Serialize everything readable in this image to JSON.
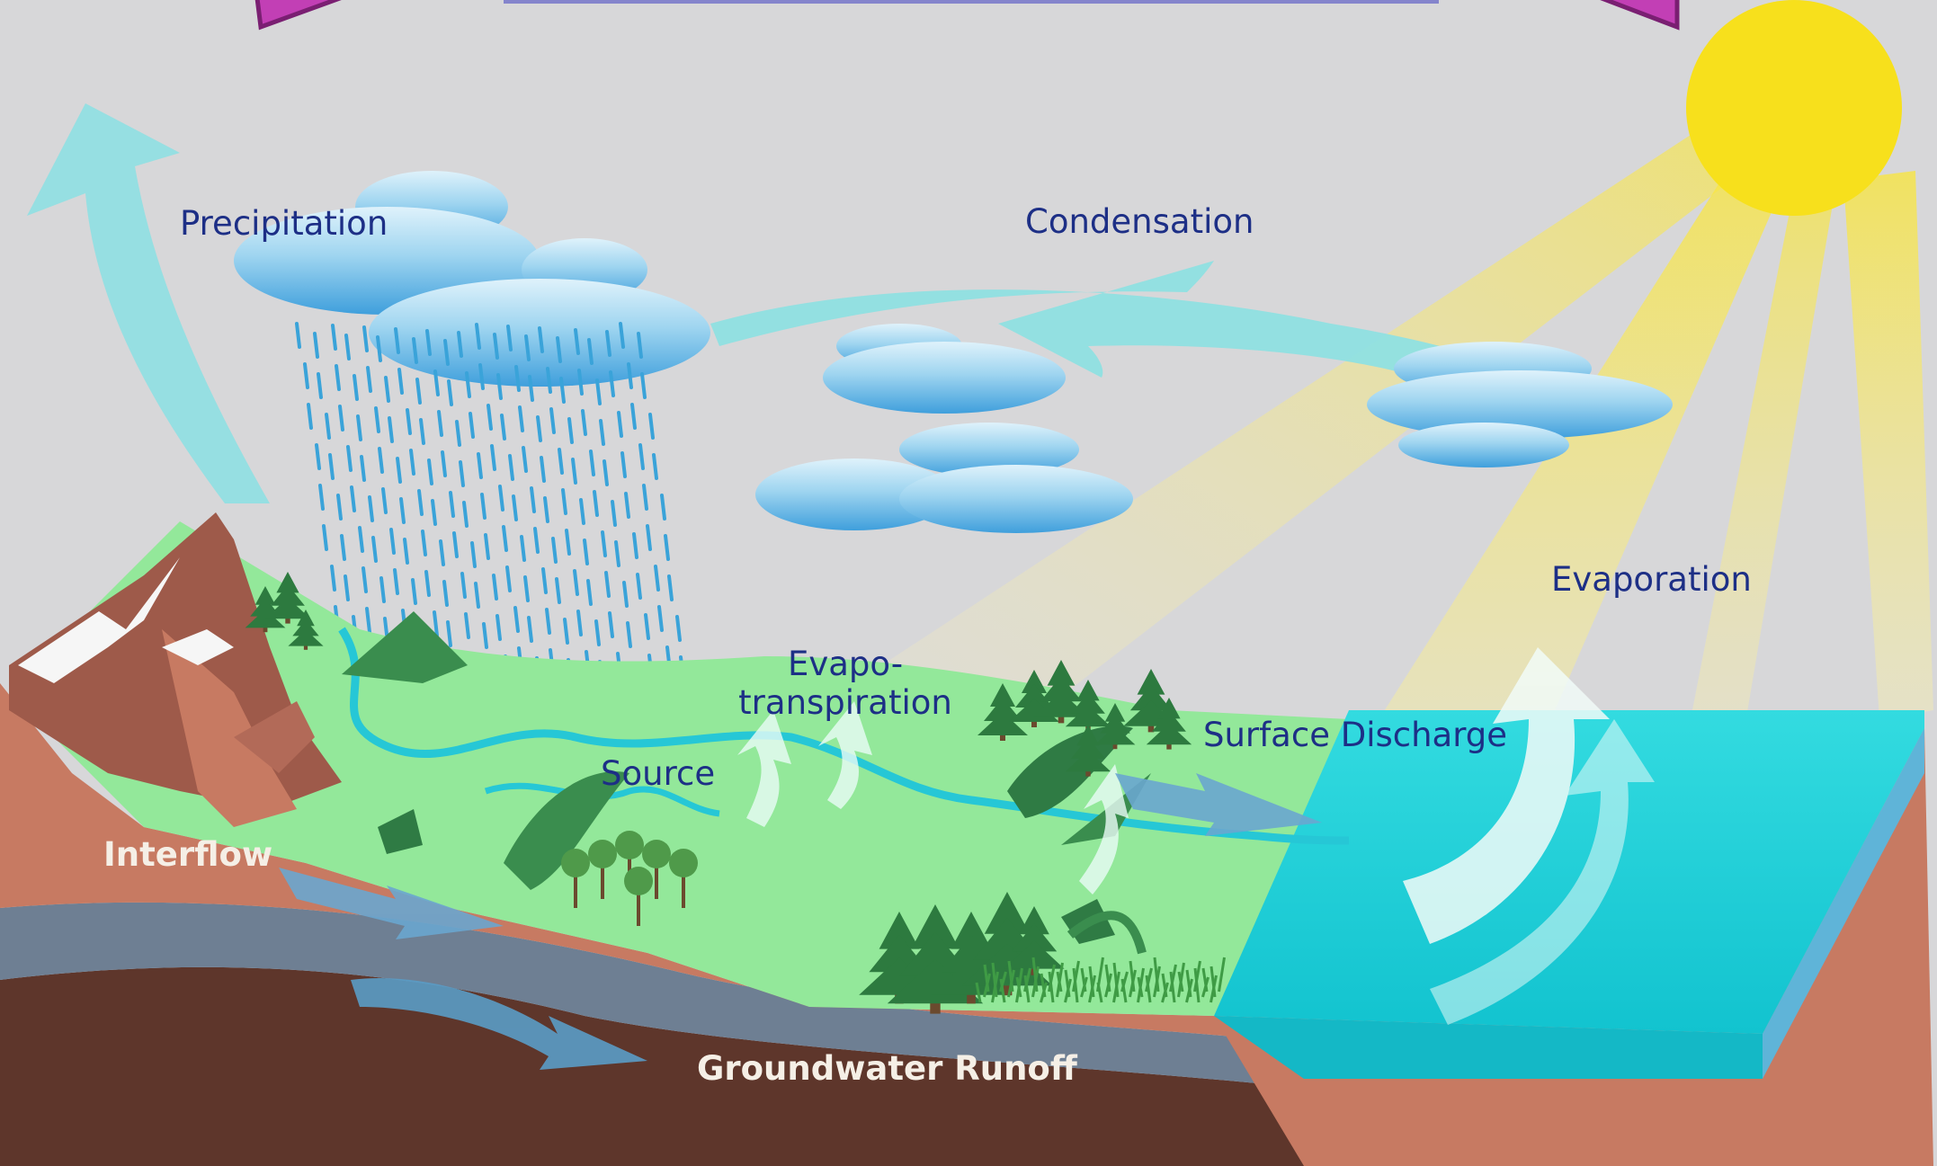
{
  "labels": {
    "precipitation": "Precipitation",
    "condensation": "Condensation",
    "evaporation": "Evaporation",
    "evapo_line1": "Evapo-",
    "evapo_line2": "transpiration",
    "source": "Source",
    "surface_discharge": "Surface Discharge",
    "interflow": "Interflow",
    "groundwater_runoff": "Groundwater Runoff"
  },
  "icons": [
    "sun-icon",
    "cloud-icon",
    "rain-icon",
    "tree-icon",
    "mountain-icon",
    "cycle-arrow-icon"
  ],
  "colors": {
    "background": "#d7d7d9",
    "banner_magenta": "#c23fb5",
    "sun": "#f7e01c",
    "cloud_blue": "#5fb6e6",
    "arrow_aqua": "#8fe0e2",
    "land_green": "#93e89a",
    "ocean": "#1fd3db",
    "soil_salmon": "#c77a62",
    "rock_grey": "#6e7f93",
    "bedrock_brown": "#5e362b",
    "label_navy": "#1d2f86"
  }
}
